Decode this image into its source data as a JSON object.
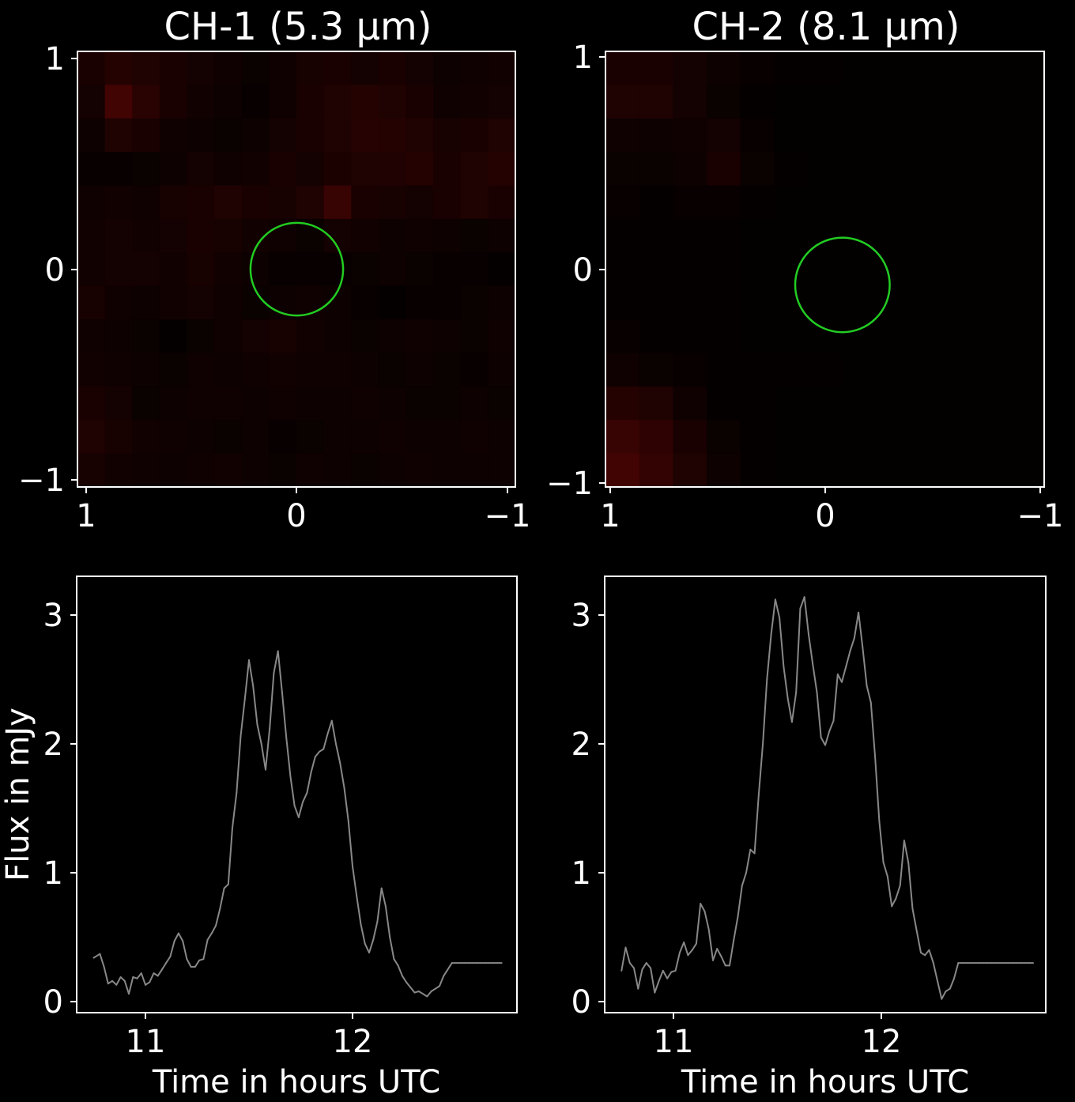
{
  "chart_data": [
    {
      "type": "heatmap",
      "title": "CH-1 (5.3 μm)",
      "xlim": [
        1,
        -1
      ],
      "ylim": [
        -1,
        1
      ],
      "xticks": [
        "1",
        "0",
        "−1"
      ],
      "yticks": [
        "−1",
        "0",
        "1"
      ],
      "grid": false,
      "colormap": "black-to-red",
      "aperture": {
        "center": [
          0,
          0
        ],
        "radius": 0.22,
        "color": "#22cc22"
      },
      "grid_size": [
        16,
        13
      ],
      "cells": [
        [
          0.1,
          0.14,
          0.12,
          0.1,
          0.08,
          0.06,
          0.04,
          0.06,
          0.09,
          0.1,
          0.08,
          0.1,
          0.08,
          0.05,
          0.06,
          0.07
        ],
        [
          0.08,
          0.26,
          0.16,
          0.1,
          0.07,
          0.05,
          0.03,
          0.06,
          0.1,
          0.12,
          0.14,
          0.12,
          0.1,
          0.06,
          0.07,
          0.08
        ],
        [
          0.05,
          0.12,
          0.1,
          0.06,
          0.05,
          0.04,
          0.05,
          0.08,
          0.1,
          0.12,
          0.15,
          0.14,
          0.12,
          0.09,
          0.1,
          0.12
        ],
        [
          0.03,
          0.03,
          0.04,
          0.05,
          0.08,
          0.06,
          0.07,
          0.1,
          0.08,
          0.11,
          0.12,
          0.13,
          0.14,
          0.1,
          0.12,
          0.14
        ],
        [
          0.06,
          0.07,
          0.06,
          0.09,
          0.1,
          0.12,
          0.1,
          0.09,
          0.12,
          0.22,
          0.1,
          0.09,
          0.08,
          0.1,
          0.12,
          0.1
        ],
        [
          0.07,
          0.08,
          0.07,
          0.08,
          0.1,
          0.09,
          0.07,
          0.06,
          0.04,
          0.08,
          0.07,
          0.05,
          0.06,
          0.05,
          0.04,
          0.05
        ],
        [
          0.07,
          0.08,
          0.08,
          0.07,
          0.09,
          0.07,
          0.05,
          0.03,
          0.03,
          0.03,
          0.04,
          0.05,
          0.04,
          0.03,
          0.03,
          0.02
        ],
        [
          0.09,
          0.06,
          0.05,
          0.07,
          0.08,
          0.06,
          0.04,
          0.05,
          0.06,
          0.05,
          0.03,
          0.02,
          0.03,
          0.03,
          0.04,
          0.05
        ],
        [
          0.06,
          0.05,
          0.04,
          0.02,
          0.04,
          0.06,
          0.08,
          0.09,
          0.07,
          0.05,
          0.04,
          0.05,
          0.06,
          0.05,
          0.04,
          0.06
        ],
        [
          0.07,
          0.06,
          0.05,
          0.04,
          0.06,
          0.05,
          0.06,
          0.07,
          0.06,
          0.06,
          0.05,
          0.04,
          0.05,
          0.04,
          0.03,
          0.05
        ],
        [
          0.1,
          0.08,
          0.04,
          0.05,
          0.06,
          0.06,
          0.05,
          0.06,
          0.05,
          0.05,
          0.06,
          0.05,
          0.04,
          0.04,
          0.05,
          0.04
        ],
        [
          0.12,
          0.09,
          0.07,
          0.06,
          0.05,
          0.04,
          0.05,
          0.03,
          0.04,
          0.05,
          0.05,
          0.06,
          0.05,
          0.05,
          0.06,
          0.05
        ],
        [
          0.09,
          0.07,
          0.06,
          0.05,
          0.06,
          0.07,
          0.05,
          0.04,
          0.06,
          0.05,
          0.04,
          0.05,
          0.06,
          0.05,
          0.05,
          0.05
        ]
      ]
    },
    {
      "type": "heatmap",
      "title": "CH-2 (8.1 μm)",
      "xlim": [
        1,
        -1
      ],
      "ylim": [
        -1,
        1
      ],
      "xticks": [
        "1",
        "0",
        "−1"
      ],
      "yticks": [
        "−1",
        "0",
        "1"
      ],
      "grid": false,
      "colormap": "black-to-red",
      "aperture": {
        "center": [
          -0.08,
          -0.07
        ],
        "radius": 0.22,
        "color": "#22cc22"
      },
      "grid_size": [
        13,
        13
      ],
      "cells": [
        [
          0.1,
          0.1,
          0.08,
          0.05,
          0.03,
          0.02,
          0.02,
          0.01,
          0.01,
          0.01,
          0.01,
          0.01,
          0.01
        ],
        [
          0.12,
          0.12,
          0.08,
          0.04,
          0.02,
          0.01,
          0.01,
          0.01,
          0.01,
          0.01,
          0.01,
          0.01,
          0.01
        ],
        [
          0.06,
          0.05,
          0.06,
          0.08,
          0.03,
          0.01,
          0.01,
          0.01,
          0.01,
          0.01,
          0.01,
          0.01,
          0.01
        ],
        [
          0.04,
          0.04,
          0.05,
          0.1,
          0.04,
          0.02,
          0.01,
          0.01,
          0.01,
          0.01,
          0.01,
          0.01,
          0.01
        ],
        [
          0.03,
          0.02,
          0.03,
          0.03,
          0.02,
          0.01,
          0.01,
          0.01,
          0.01,
          0.01,
          0.01,
          0.01,
          0.01
        ],
        [
          0.02,
          0.02,
          0.02,
          0.02,
          0.01,
          0.01,
          0.01,
          0.01,
          0.01,
          0.01,
          0.01,
          0.01,
          0.01
        ],
        [
          0.02,
          0.02,
          0.02,
          0.02,
          0.01,
          0.01,
          0.01,
          0.01,
          0.01,
          0.01,
          0.01,
          0.01,
          0.01
        ],
        [
          0.02,
          0.02,
          0.02,
          0.02,
          0.01,
          0.01,
          0.01,
          0.01,
          0.01,
          0.01,
          0.01,
          0.01,
          0.01
        ],
        [
          0.03,
          0.02,
          0.02,
          0.02,
          0.01,
          0.01,
          0.01,
          0.01,
          0.01,
          0.01,
          0.01,
          0.01,
          0.01
        ],
        [
          0.06,
          0.04,
          0.03,
          0.02,
          0.02,
          0.02,
          0.02,
          0.01,
          0.01,
          0.01,
          0.01,
          0.01,
          0.01
        ],
        [
          0.14,
          0.12,
          0.06,
          0.02,
          0.02,
          0.01,
          0.01,
          0.01,
          0.01,
          0.01,
          0.01,
          0.01,
          0.01
        ],
        [
          0.22,
          0.18,
          0.1,
          0.04,
          0.02,
          0.01,
          0.01,
          0.01,
          0.01,
          0.01,
          0.01,
          0.01,
          0.01
        ],
        [
          0.26,
          0.2,
          0.12,
          0.05,
          0.02,
          0.01,
          0.01,
          0.01,
          0.01,
          0.01,
          0.01,
          0.01,
          0.01
        ]
      ]
    },
    {
      "type": "line",
      "title": "",
      "xlabel": "Time in hours UTC",
      "ylabel": "Flux in mJy",
      "xlim": [
        10.68,
        12.82
      ],
      "ylim": [
        -0.1,
        3.3
      ],
      "xticks": [
        11,
        12
      ],
      "yticks": [
        0,
        1,
        2,
        3
      ],
      "grid": false,
      "line_color": "#888888",
      "series": [
        {
          "x": [
            10.75,
            10.78,
            10.8,
            10.82,
            10.84,
            10.86,
            10.88,
            10.9,
            10.92,
            10.94,
            10.96,
            10.98,
            11.0,
            11.02,
            11.04,
            11.06,
            11.08,
            11.1,
            11.12,
            11.14,
            11.16,
            11.18,
            11.2,
            11.22,
            11.24,
            11.26,
            11.28,
            11.3,
            11.32,
            11.34,
            11.36,
            11.38,
            11.4,
            11.42,
            11.44,
            11.46,
            11.48,
            11.5,
            11.52,
            11.54,
            11.56,
            11.58,
            11.6,
            11.62,
            11.64,
            11.66,
            11.68,
            11.7,
            11.72,
            11.74,
            11.76,
            11.78,
            11.8,
            11.82,
            11.84,
            11.86,
            11.88,
            11.9,
            11.92,
            11.94,
            11.96,
            11.98,
            12.0,
            12.02,
            12.04,
            12.06,
            12.08,
            12.1,
            12.12,
            12.14,
            12.16,
            12.18,
            12.2,
            12.22,
            12.24,
            12.26,
            12.28,
            12.3,
            12.32,
            12.34,
            12.36,
            12.38,
            12.4,
            12.42,
            12.44,
            12.46,
            12.48,
            12.5,
            12.52,
            12.54,
            12.56,
            12.58,
            12.6,
            12.62,
            12.64,
            12.66,
            12.68,
            12.7,
            12.72
          ],
          "y": [
            0.34,
            0.37,
            0.27,
            0.14,
            0.16,
            0.13,
            0.19,
            0.16,
            0.06,
            0.19,
            0.18,
            0.22,
            0.13,
            0.15,
            0.22,
            0.2,
            0.25,
            0.3,
            0.35,
            0.47,
            0.53,
            0.47,
            0.33,
            0.27,
            0.27,
            0.32,
            0.33,
            0.48,
            0.53,
            0.59,
            0.72,
            0.88,
            0.91,
            1.35,
            1.62,
            2.06,
            2.35,
            2.65,
            2.45,
            2.15,
            2.0,
            1.8,
            2.12,
            2.55,
            2.72,
            2.4,
            2.05,
            1.75,
            1.52,
            1.43,
            1.55,
            1.62,
            1.78,
            1.9,
            1.94,
            1.96,
            2.08,
            2.18,
            2.0,
            1.85,
            1.66,
            1.4,
            1.05,
            0.82,
            0.6,
            0.45,
            0.38,
            0.48,
            0.62,
            0.88,
            0.74,
            0.5,
            0.33,
            0.28,
            0.2,
            0.15,
            0.11,
            0.07,
            0.08,
            0.06,
            0.04,
            0.08,
            0.1,
            0.12,
            0.2,
            0.25,
            0.3,
            0.3,
            0.3,
            0.3,
            0.3,
            0.3,
            0.3,
            0.3,
            0.3,
            0.3,
            0.3,
            0.3,
            0.3
          ]
        }
      ]
    },
    {
      "type": "line",
      "title": "",
      "xlabel": "Time in hours UTC",
      "ylabel": "",
      "xlim": [
        10.68,
        12.82
      ],
      "ylim": [
        -0.1,
        3.3
      ],
      "xticks": [
        11,
        12
      ],
      "yticks": [
        0,
        1,
        2,
        3
      ],
      "grid": false,
      "line_color": "#888888",
      "series": [
        {
          "x": [
            10.75,
            10.77,
            10.79,
            10.81,
            10.83,
            10.85,
            10.87,
            10.89,
            10.91,
            10.93,
            10.95,
            10.97,
            10.99,
            11.01,
            11.03,
            11.05,
            11.07,
            11.09,
            11.11,
            11.13,
            11.15,
            11.17,
            11.19,
            11.21,
            11.23,
            11.25,
            11.27,
            11.29,
            11.31,
            11.33,
            11.35,
            11.37,
            11.39,
            11.41,
            11.43,
            11.45,
            11.47,
            11.49,
            11.51,
            11.53,
            11.55,
            11.57,
            11.59,
            11.61,
            11.63,
            11.65,
            11.67,
            11.69,
            11.71,
            11.73,
            11.75,
            11.77,
            11.79,
            11.81,
            11.83,
            11.85,
            11.87,
            11.89,
            11.91,
            11.93,
            11.95,
            11.97,
            11.99,
            12.01,
            12.03,
            12.05,
            12.07,
            12.09,
            12.11,
            12.13,
            12.15,
            12.17,
            12.19,
            12.21,
            12.23,
            12.25,
            12.27,
            12.29,
            12.31,
            12.33,
            12.35,
            12.37,
            12.39,
            12.41,
            12.43,
            12.45,
            12.47,
            12.49,
            12.51,
            12.53,
            12.55,
            12.57,
            12.59,
            12.61,
            12.63,
            12.65,
            12.67,
            12.69,
            12.71,
            12.73
          ],
          "y": [
            0.24,
            0.42,
            0.3,
            0.26,
            0.1,
            0.25,
            0.3,
            0.26,
            0.07,
            0.16,
            0.24,
            0.18,
            0.23,
            0.24,
            0.38,
            0.46,
            0.36,
            0.4,
            0.45,
            0.76,
            0.7,
            0.56,
            0.32,
            0.41,
            0.35,
            0.28,
            0.28,
            0.48,
            0.66,
            0.9,
            1.0,
            1.18,
            1.15,
            1.6,
            2.0,
            2.5,
            2.85,
            3.12,
            2.98,
            2.6,
            2.35,
            2.17,
            2.4,
            3.05,
            3.14,
            2.85,
            2.62,
            2.4,
            2.05,
            1.99,
            2.1,
            2.18,
            2.54,
            2.48,
            2.6,
            2.72,
            2.82,
            3.02,
            2.75,
            2.45,
            2.32,
            1.9,
            1.4,
            1.08,
            0.97,
            0.74,
            0.8,
            0.9,
            1.25,
            1.08,
            0.72,
            0.55,
            0.38,
            0.36,
            0.4,
            0.3,
            0.16,
            0.02,
            0.08,
            0.1,
            0.18,
            0.3,
            0.3,
            0.3,
            0.3,
            0.3,
            0.3,
            0.3,
            0.3,
            0.3,
            0.3,
            0.3,
            0.3,
            0.3,
            0.3,
            0.3,
            0.3,
            0.3,
            0.3,
            0.3
          ]
        }
      ]
    }
  ]
}
